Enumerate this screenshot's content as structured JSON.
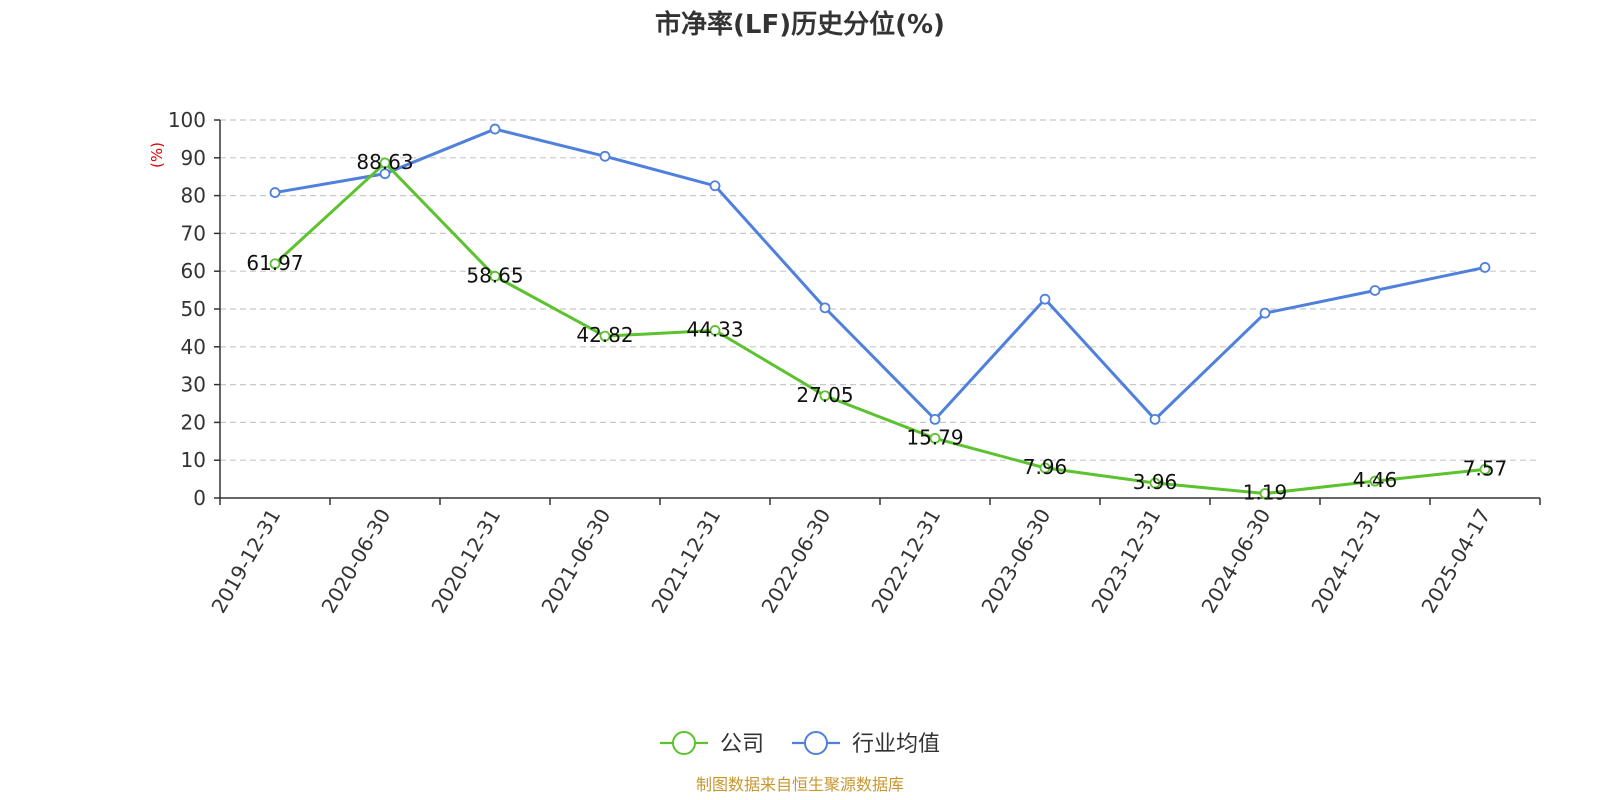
{
  "chart_data": {
    "type": "line",
    "title": "市净率(LF)历史分位(%)",
    "ylabel": "(%)",
    "ylim": [
      0,
      100
    ],
    "yticks": [
      0,
      10,
      20,
      30,
      40,
      50,
      60,
      70,
      80,
      90,
      100
    ],
    "grid": true,
    "legend_position": "bottom",
    "categories": [
      "2019-12-31",
      "2020-06-30",
      "2020-12-31",
      "2021-06-30",
      "2021-12-31",
      "2022-06-30",
      "2022-12-31",
      "2023-06-30",
      "2023-12-31",
      "2024-06-30",
      "2024-12-31",
      "2025-04-17"
    ],
    "series": [
      {
        "name": "公司",
        "color": "#5cc22e",
        "show_labels": true,
        "values": [
          61.97,
          88.63,
          58.65,
          42.82,
          44.33,
          27.05,
          15.79,
          7.96,
          3.96,
          1.19,
          4.46,
          7.57
        ]
      },
      {
        "name": "行业均值",
        "color": "#4e80dc",
        "show_labels": false,
        "values": [
          80.8,
          85.8,
          97.6,
          90.4,
          82.6,
          50.3,
          20.8,
          52.6,
          20.8,
          48.9,
          54.9,
          61.0
        ]
      }
    ]
  },
  "source_text": "制图数据来自恒生聚源数据库"
}
